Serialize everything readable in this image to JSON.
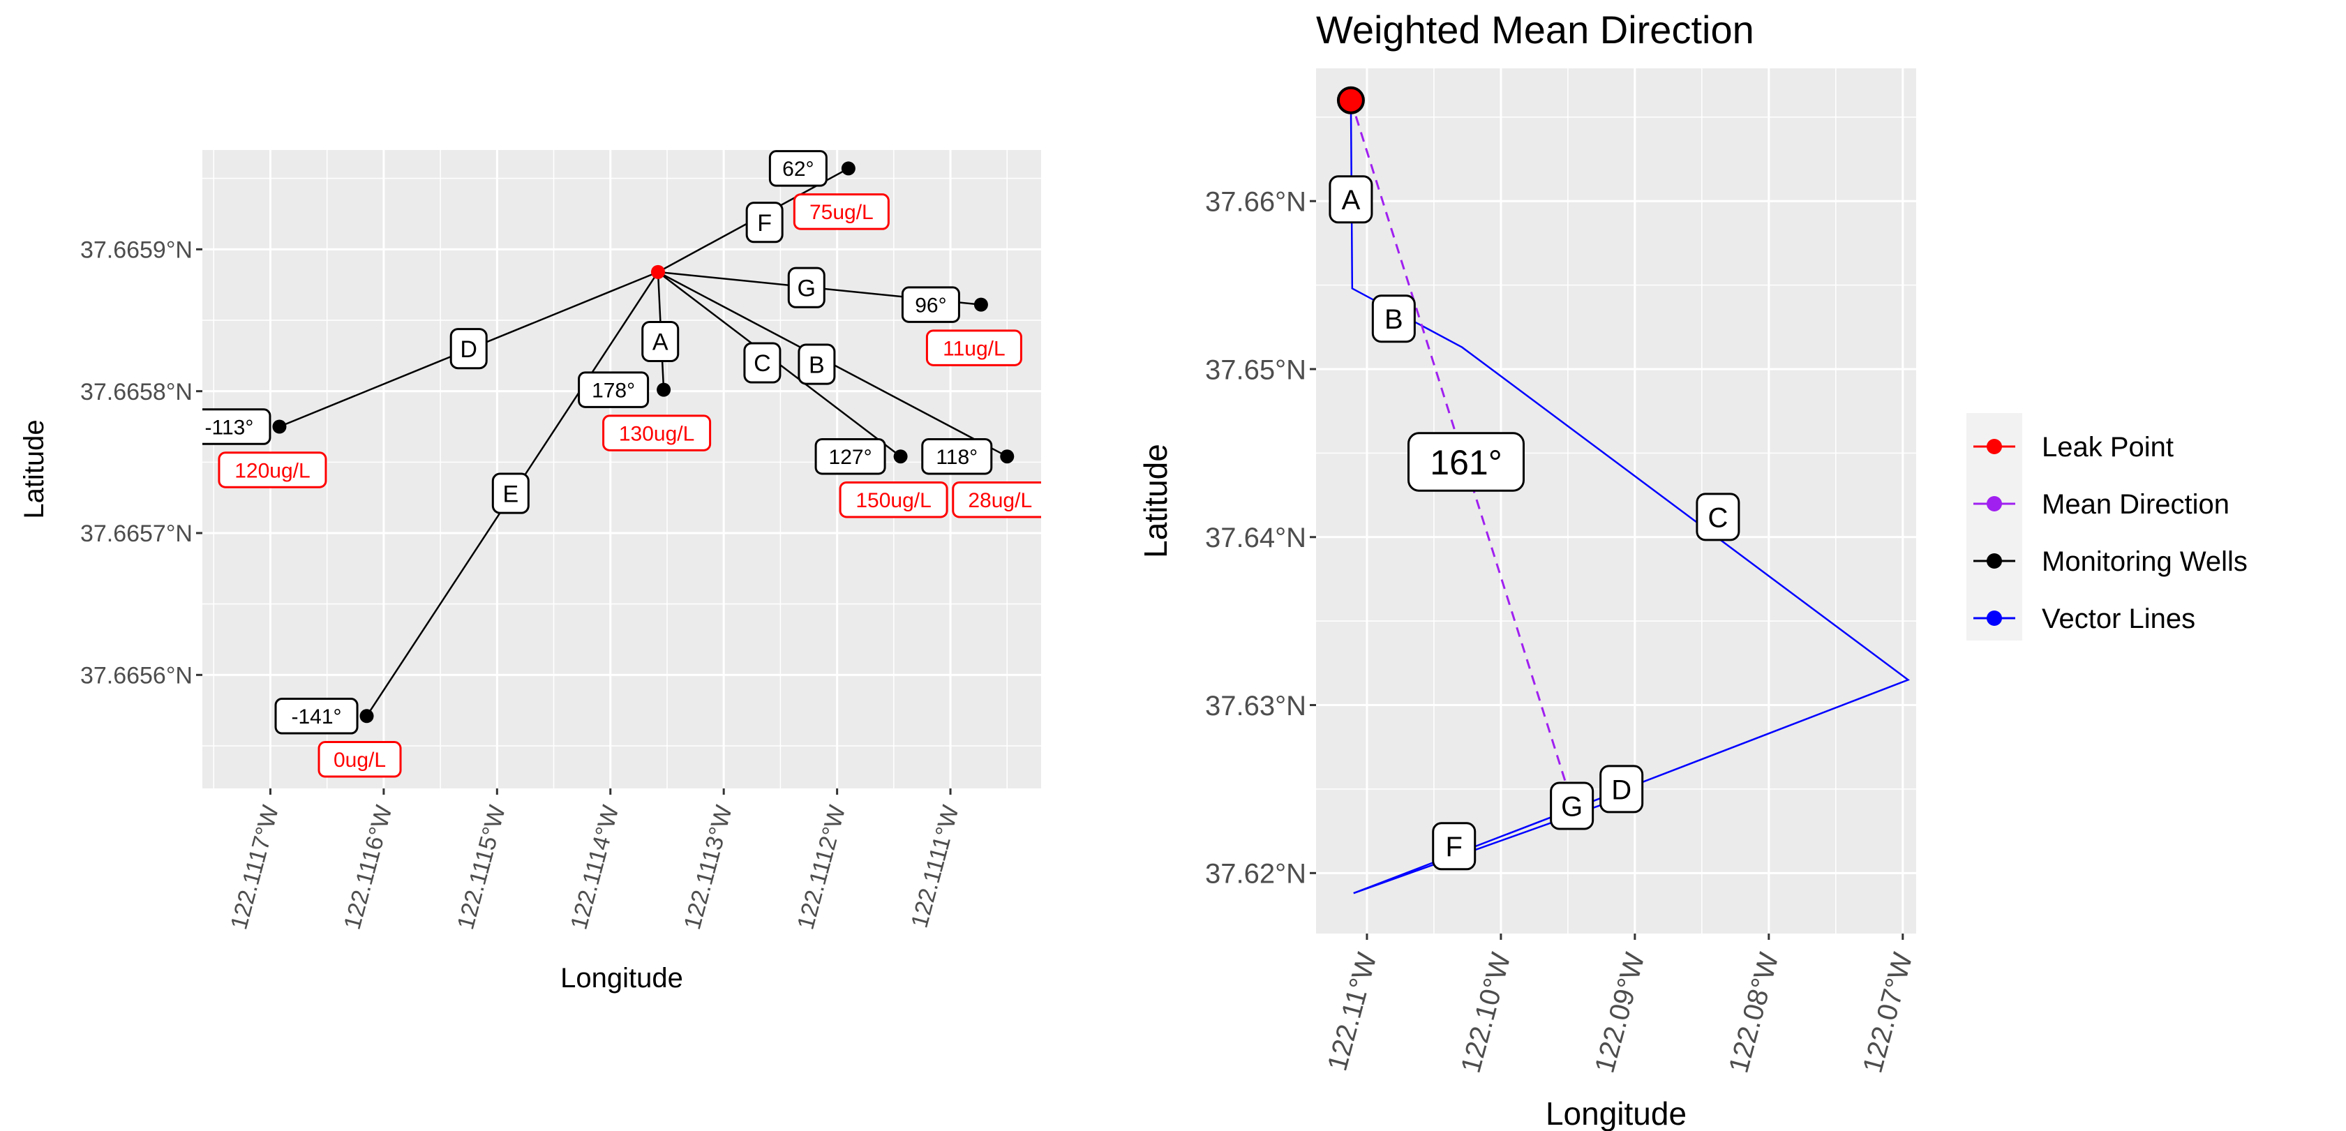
{
  "chart_data": [
    {
      "type": "scatter",
      "xlabel": "Longitude",
      "ylabel": "Latitude",
      "xlim": [
        -122.11176,
        -122.11102
      ],
      "ylim": [
        37.66552,
        37.66597
      ],
      "x_ticks": [
        {
          "value": -122.1117,
          "label": "122.1117°W"
        },
        {
          "value": -122.1116,
          "label": "122.1116°W"
        },
        {
          "value": -122.1115,
          "label": "122.1115°W"
        },
        {
          "value": -122.1114,
          "label": "122.1114°W"
        },
        {
          "value": -122.1113,
          "label": "122.1113°W"
        },
        {
          "value": -122.1112,
          "label": "122.1112°W"
        },
        {
          "value": -122.1111,
          "label": "122.1111°W"
        }
      ],
      "y_ticks": [
        {
          "value": 37.6656,
          "label": "37.6656°N"
        },
        {
          "value": 37.6657,
          "label": "37.6657°N"
        },
        {
          "value": 37.6658,
          "label": "37.6658°N"
        },
        {
          "value": 37.6659,
          "label": "37.6659°N"
        }
      ],
      "grid": true,
      "leak_point": {
        "x": -122.111358,
        "y": 37.665884
      },
      "wells": [
        {
          "x": -122.111692,
          "y": 37.665775,
          "angle": "-113°",
          "conc": "120ug/L"
        },
        {
          "x": -122.111615,
          "y": 37.665571,
          "angle": "-141°",
          "conc": "0ug/L"
        },
        {
          "x": -122.111353,
          "y": 37.665801,
          "angle": "178°",
          "conc": "130ug/L"
        },
        {
          "x": -122.11119,
          "y": 37.665957,
          "angle": "62°",
          "conc": "75ug/L"
        },
        {
          "x": -122.111073,
          "y": 37.665861,
          "angle": "96°",
          "conc": "11ug/L"
        },
        {
          "x": -122.111144,
          "y": 37.665754,
          "angle": "127°",
          "conc": "150ug/L"
        },
        {
          "x": -122.11105,
          "y": 37.665754,
          "angle": "118°",
          "conc": "28ug/L"
        }
      ],
      "vector_labels": [
        {
          "label": "A",
          "x": -122.111356,
          "y": 37.665835
        },
        {
          "label": "B",
          "x": -122.111218,
          "y": 37.665819
        },
        {
          "label": "C",
          "x": -122.111266,
          "y": 37.66582
        },
        {
          "label": "D",
          "x": -122.111525,
          "y": 37.66583
        },
        {
          "label": "E",
          "x": -122.111488,
          "y": 37.665728
        },
        {
          "label": "F",
          "x": -122.111264,
          "y": 37.665919
        },
        {
          "label": "G",
          "x": -122.111227,
          "y": 37.665873
        }
      ]
    },
    {
      "type": "line",
      "title": "Weighted Mean Direction",
      "xlabel": "Longitude",
      "ylabel": "Latitude",
      "xlim": [
        -122.1138,
        -122.069
      ],
      "ylim": [
        37.6164,
        37.6679
      ],
      "x_ticks": [
        {
          "value": -122.11,
          "label": "122.11°W"
        },
        {
          "value": -122.1,
          "label": "122.10°W"
        },
        {
          "value": -122.09,
          "label": "122.09°W"
        },
        {
          "value": -122.08,
          "label": "122.08°W"
        },
        {
          "value": -122.07,
          "label": "122.07°W"
        }
      ],
      "y_ticks": [
        {
          "value": 37.62,
          "label": "37.62°N"
        },
        {
          "value": 37.63,
          "label": "37.63°N"
        },
        {
          "value": 37.64,
          "label": "37.64°N"
        },
        {
          "value": 37.65,
          "label": "37.65°N"
        },
        {
          "value": 37.66,
          "label": "37.66°N"
        }
      ],
      "grid": true,
      "legend_position": "right",
      "legend": [
        {
          "name": "Leak Point",
          "color": "#ff0000"
        },
        {
          "name": "Mean Direction",
          "color": "#a020f0"
        },
        {
          "name": "Monitoring Wells",
          "color": "#000000"
        },
        {
          "name": "Vector Lines",
          "color": "#0000ff"
        }
      ],
      "leak_point": {
        "x": -122.1112,
        "y": 37.666
      },
      "vector_path": [
        {
          "x": -122.1112,
          "y": 37.666
        },
        {
          "x": -122.1111,
          "y": 37.6548
        },
        {
          "x": -122.1029,
          "y": 37.6513
        },
        {
          "x": -122.0696,
          "y": 37.6315
        },
        {
          "x": -122.111,
          "y": 37.6188
        },
        {
          "x": -122.092,
          "y": 37.6242
        }
      ],
      "vector_labels": [
        {
          "label": "A",
          "x": -122.1112,
          "y": 37.6601
        },
        {
          "label": "B",
          "x": -122.108,
          "y": 37.653
        },
        {
          "label": "C",
          "x": -122.0838,
          "y": 37.6412
        },
        {
          "label": "D",
          "x": -122.091,
          "y": 37.625
        },
        {
          "label": "F",
          "x": -122.1035,
          "y": 37.6216
        },
        {
          "label": "G",
          "x": -122.0947,
          "y": 37.624
        }
      ],
      "mean_direction": {
        "from": {
          "x": -122.1112,
          "y": 37.666
        },
        "to": {
          "x": -122.0947,
          "y": 37.6242
        },
        "label": "161°"
      }
    }
  ]
}
